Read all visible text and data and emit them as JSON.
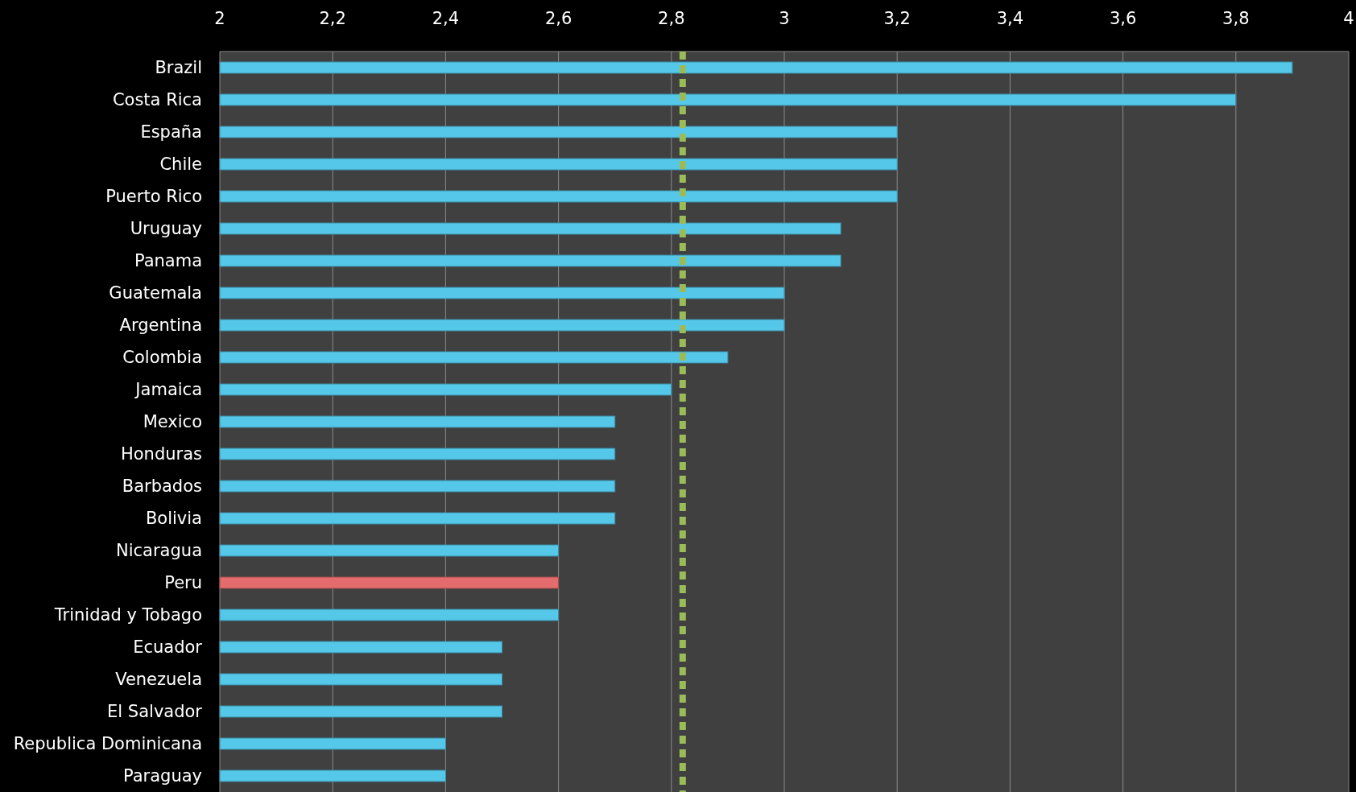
{
  "chart_data": {
    "type": "bar",
    "orientation": "horizontal",
    "categories": [
      "Brazil",
      "Costa Rica",
      "España",
      "Chile",
      "Puerto Rico",
      "Uruguay",
      "Panama",
      "Guatemala",
      "Argentina",
      "Colombia",
      "Jamaica",
      "Mexico",
      "Honduras",
      "Barbados",
      "Bolivia",
      "Nicaragua",
      "Peru",
      "Trinidad y Tobago",
      "Ecuador",
      "Venezuela",
      "El Salvador",
      "Republica Dominicana",
      "Paraguay"
    ],
    "values": [
      3.9,
      3.8,
      3.2,
      3.2,
      3.2,
      3.1,
      3.1,
      3.0,
      3.0,
      2.9,
      2.8,
      2.7,
      2.7,
      2.7,
      2.7,
      2.6,
      2.6,
      2.6,
      2.5,
      2.5,
      2.5,
      2.4,
      2.4
    ],
    "colors": [
      "#55c8ea",
      "#55c8ea",
      "#55c8ea",
      "#55c8ea",
      "#55c8ea",
      "#55c8ea",
      "#55c8ea",
      "#55c8ea",
      "#55c8ea",
      "#55c8ea",
      "#55c8ea",
      "#55c8ea",
      "#55c8ea",
      "#55c8ea",
      "#55c8ea",
      "#55c8ea",
      "#e46c6c",
      "#55c8ea",
      "#55c8ea",
      "#55c8ea",
      "#55c8ea",
      "#55c8ea",
      "#55c8ea"
    ],
    "xlim": [
      2,
      4
    ],
    "xticks": [
      {
        "value": 2,
        "label": "2"
      },
      {
        "value": 2.2,
        "label": "2,2"
      },
      {
        "value": 2.4,
        "label": "2,4"
      },
      {
        "value": 2.6,
        "label": "2,6"
      },
      {
        "value": 2.8,
        "label": "2,8"
      },
      {
        "value": 3,
        "label": "3"
      },
      {
        "value": 3.2,
        "label": "3,2"
      },
      {
        "value": 3.4,
        "label": "3,4"
      },
      {
        "value": 3.6,
        "label": "3,6"
      },
      {
        "value": 3.8,
        "label": "3,8"
      },
      {
        "value": 4,
        "label": "4"
      }
    ],
    "grid": "x",
    "ref_lines": [
      {
        "axis": "x",
        "value": 2.82,
        "color": "#9bbb59",
        "line_style": "dashed"
      }
    ]
  }
}
